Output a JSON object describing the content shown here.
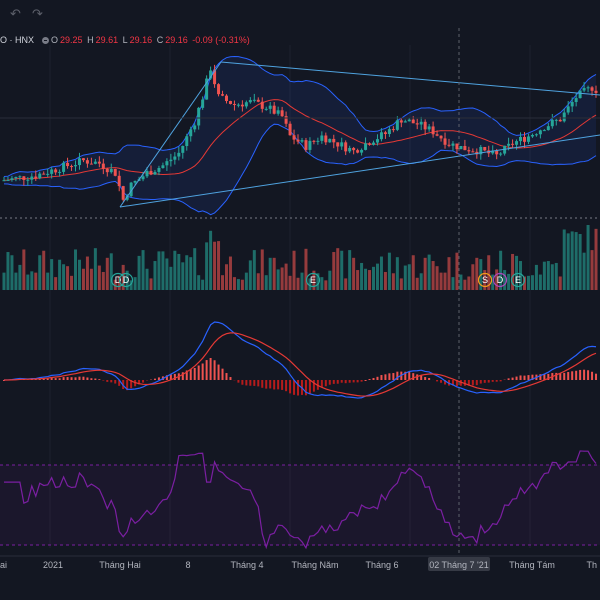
{
  "toolbar": {
    "undo_icon": "undo-icon",
    "redo_icon": "redo-icon"
  },
  "legend": {
    "symbol": "O · HNX",
    "open_key": "O",
    "open_val": "29.25",
    "high_key": "H",
    "high_val": "29.61",
    "low_key": "L",
    "low_val": "29.16",
    "close_key": "C",
    "close_val": "29.16",
    "change": "-0.09 (-0.31%)"
  },
  "colors": {
    "background": "#131722",
    "up": "#26a69a",
    "down": "#ef5350",
    "bollinger": "#2962ff",
    "ma": "#e53935",
    "trendline": "#4fa3e0",
    "macd_line": "#2962ff",
    "signal_line": "#e53935",
    "rsi": "#7b1fa2"
  },
  "chart_data": {
    "type": "candlestick",
    "price_range": [
      26.5,
      32.8
    ],
    "ohlc": [],
    "volume": [],
    "macd_hist": [],
    "rsi": [],
    "x_tick_labels": [
      "ai",
      "2021",
      "Tháng Hai",
      "8",
      "Tháng 4",
      "Tháng Năm",
      "Tháng 6",
      "Tháng Tám",
      "Th"
    ],
    "crosshair_label": "02 Tháng 7 '21",
    "event_badges": [
      "D",
      "D",
      "E",
      "S",
      "D",
      "E"
    ]
  }
}
